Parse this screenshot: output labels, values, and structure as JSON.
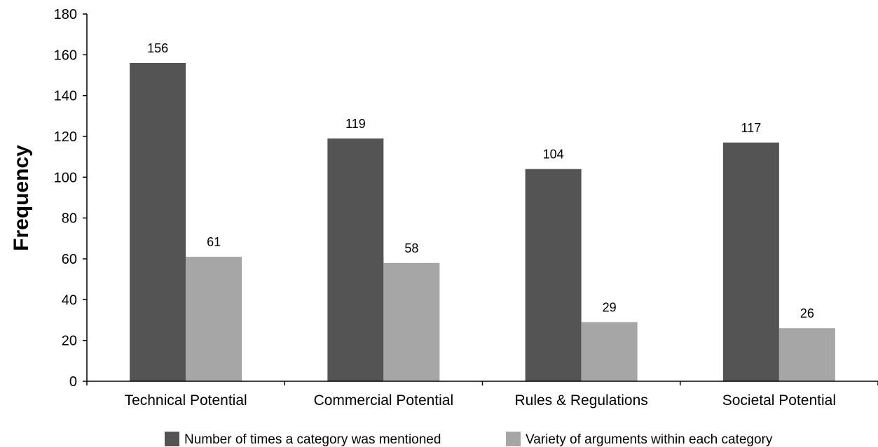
{
  "chart_data": {
    "type": "bar",
    "ylabel": "Frequency",
    "xlabel": "",
    "ylim": [
      0,
      180
    ],
    "ytick_step": 20,
    "grid": false,
    "legend_position": "bottom",
    "categories": [
      "Technical Potential",
      "Commercial Potential",
      "Rules & Regulations",
      "Societal Potential"
    ],
    "series": [
      {
        "name": "Number of times a category was mentioned",
        "color": "#545454",
        "values": [
          156,
          119,
          104,
          117
        ]
      },
      {
        "name": "Variety of arguments within each category",
        "color": "#a6a6a6",
        "values": [
          61,
          58,
          29,
          26
        ]
      }
    ]
  }
}
